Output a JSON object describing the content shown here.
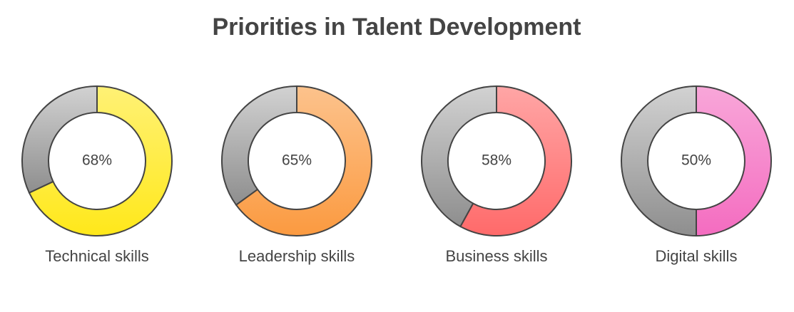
{
  "title": "Priorities in Talent Development",
  "chart_data": [
    {
      "type": "donut",
      "title": "Technical skills",
      "values": [
        68
      ],
      "value_labels": [
        "68%"
      ],
      "color": "#ffe81a"
    },
    {
      "type": "donut",
      "title": "Leadership skills",
      "values": [
        65
      ],
      "value_labels": [
        "65%"
      ],
      "color": "#fb9a40"
    },
    {
      "type": "donut",
      "title": "Business skills",
      "values": [
        58
      ],
      "value_labels": [
        "58%"
      ],
      "color": "#ff6a6a"
    },
    {
      "type": "donut",
      "title": "Digital skills",
      "values": [
        50
      ],
      "value_labels": [
        "50%"
      ],
      "color": "#f46cc0"
    }
  ]
}
